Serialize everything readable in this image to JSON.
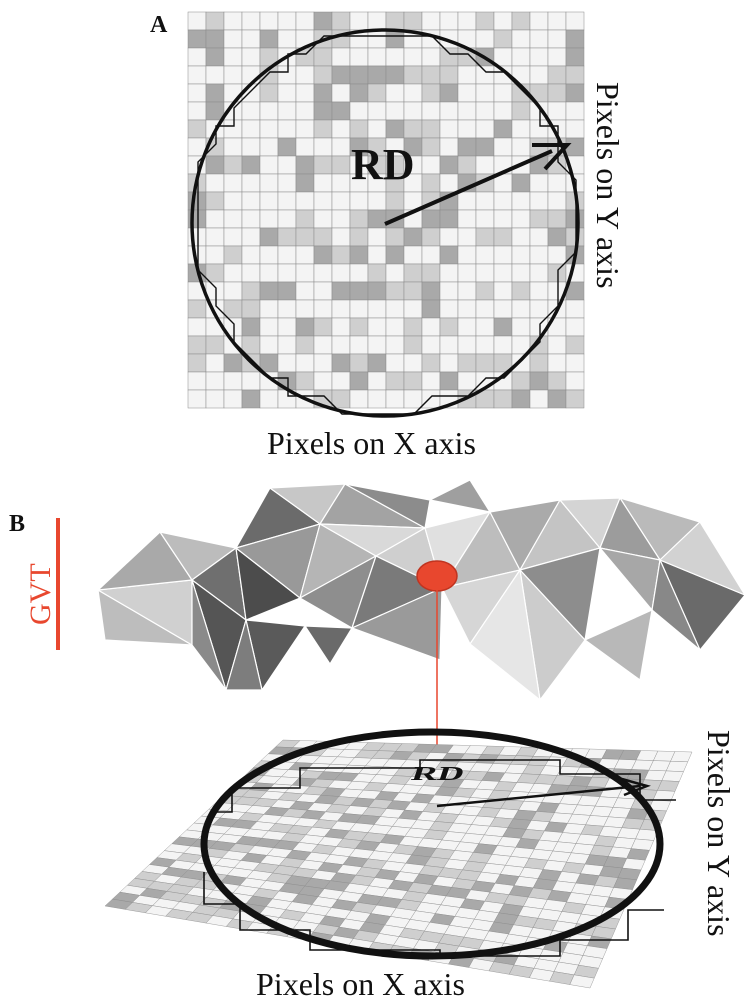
{
  "panel_a": {
    "label": "A",
    "radius_label": "RD",
    "y_axis_label": "Pixels on Y axis",
    "x_axis_label": "Pixels on X axis"
  },
  "panel_b": {
    "label": "B",
    "side_label": "GVT",
    "radius_label": "RD",
    "y_axis_label": "Pixels on Y axis",
    "x_axis_label": "Pixels on X axis"
  },
  "colors": {
    "ink": "#111111",
    "highlight": "#e8472e",
    "cell_light": "#f4f4f4",
    "cell_mid": "#cfcfcf",
    "cell_dark": "#a9a9a9",
    "grid_line": "#8a8a8a"
  }
}
